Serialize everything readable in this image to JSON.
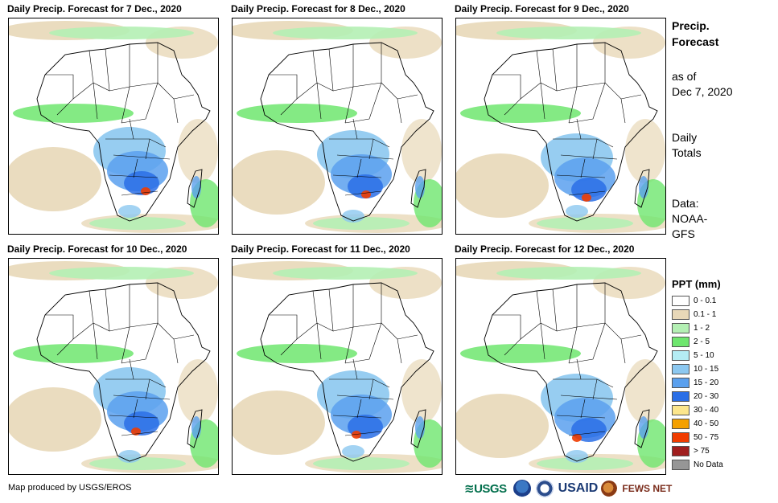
{
  "panels": [
    {
      "title": "Daily Precip. Forecast for 7 Dec., 2020"
    },
    {
      "title": "Daily Precip. Forecast for 8 Dec., 2020"
    },
    {
      "title": "Daily Precip. Forecast for 9 Dec., 2020"
    },
    {
      "title": "Daily Precip. Forecast for 10 Dec., 2020"
    },
    {
      "title": "Daily Precip. Forecast for 11 Dec., 2020"
    },
    {
      "title": "Daily Precip. Forecast for 12 Dec., 2020"
    }
  ],
  "side": {
    "title_line1": "Precip.",
    "title_line2": "Forecast",
    "asof_line1": "as of",
    "asof_line2": "Dec 7, 2020",
    "totals_line1": "Daily",
    "totals_line2": "Totals",
    "data_line1": "Data:",
    "data_line2": "NOAA-",
    "data_line3": "GFS"
  },
  "legend": {
    "title": "PPT (mm)",
    "items": [
      {
        "label": "0 - 0.1",
        "color": "#ffffff"
      },
      {
        "label": "0.1 - 1",
        "color": "#e8d8b8"
      },
      {
        "label": "1 - 2",
        "color": "#b4f0b4"
      },
      {
        "label": "2 - 5",
        "color": "#6ee66e"
      },
      {
        "label": "5 - 10",
        "color": "#b4ecf4"
      },
      {
        "label": "10 - 15",
        "color": "#8cc8f0"
      },
      {
        "label": "15 - 20",
        "color": "#5aa0ee"
      },
      {
        "label": "20 - 30",
        "color": "#2a6ee6"
      },
      {
        "label": "30 - 40",
        "color": "#fce68c"
      },
      {
        "label": "40 - 50",
        "color": "#f4a000"
      },
      {
        "label": "50 - 75",
        "color": "#f03c00"
      },
      {
        "label": "> 75",
        "color": "#a01e1e"
      },
      {
        "label": "No Data",
        "color": "#969696"
      }
    ]
  },
  "credit": "Map produced by USGS/EROS",
  "logos": {
    "usgs": "≋USGS",
    "usaid": "USAID",
    "fews": "FEWS NET"
  }
}
